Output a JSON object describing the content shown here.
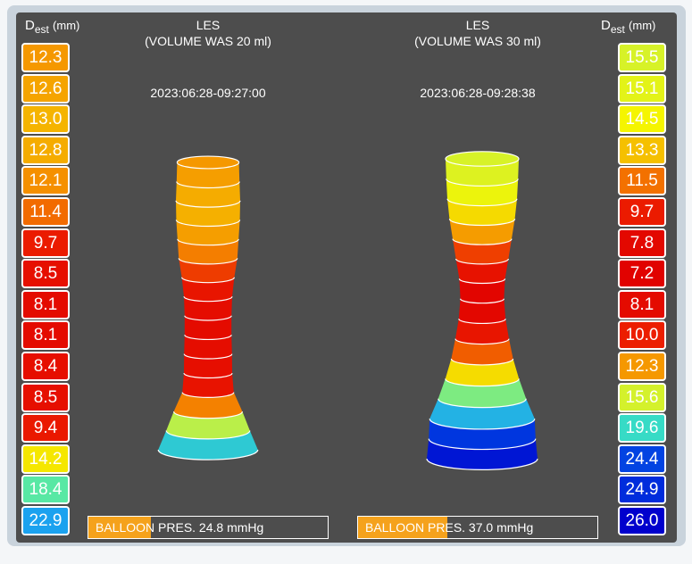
{
  "left": {
    "header": {
      "symbol": "D",
      "subscript": "est",
      "unit": "(mm)"
    },
    "title": "LES",
    "subtitle": "(VOLUME WAS 20 ml)",
    "timestamp": "2023:06:28-09:27:00",
    "diameters": [
      "12.3",
      "12.6",
      "13.0",
      "12.8",
      "12.1",
      "11.4",
      "9.7",
      "8.5",
      "8.1",
      "8.1",
      "8.4",
      "8.5",
      "9.4",
      "14.2",
      "18.4",
      "22.9"
    ],
    "pressure": "BALLOON PRES. 24.8 mmHg"
  },
  "right": {
    "header": {
      "symbol": "D",
      "subscript": "est",
      "unit": "(mm)"
    },
    "title": "LES",
    "subtitle": "(VOLUME WAS 30 ml)",
    "timestamp": "2023:06:28-09:28:38",
    "diameters": [
      "15.5",
      "15.1",
      "14.5",
      "13.3",
      "11.5",
      "9.7",
      "7.8",
      "7.2",
      "8.1",
      "10.0",
      "12.3",
      "15.6",
      "19.6",
      "24.4",
      "24.9",
      "26.0"
    ],
    "pressure": "BALLOON PRES. 37.0 mmHg"
  }
}
